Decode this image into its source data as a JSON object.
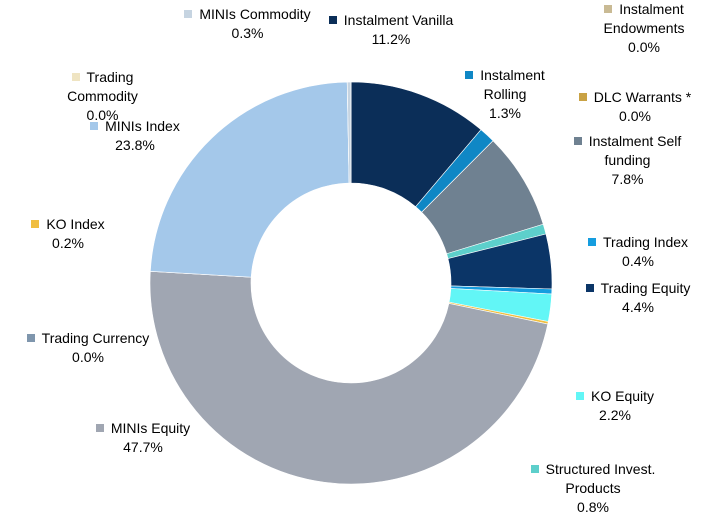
{
  "chart_data": {
    "type": "donut",
    "categories": [
      "Instalment Vanilla",
      "Instalment Rolling",
      "Instalment Self funding",
      "Structured Invest. Products",
      "Trading Equity",
      "Trading Index",
      "KO Equity",
      "KO Index",
      "MINIs Equity",
      "Trading Currency",
      "MINIs Index",
      "Trading Commodity",
      "MINIs Commodity",
      "Instalment Endowments",
      "DLC Warrants *"
    ],
    "values": [
      11.2,
      1.3,
      7.8,
      0.8,
      4.4,
      0.4,
      2.2,
      0.2,
      47.7,
      0.0,
      23.8,
      0.0,
      0.3,
      0.0,
      0.0
    ],
    "value_labels": [
      "11.2%",
      "1.3%",
      "7.8%",
      "0.8%",
      "4.4%",
      "0.4%",
      "2.2%",
      "0.2%",
      "47.7%",
      "0.0%",
      "23.8%",
      "0.0%",
      "0.3%",
      "0.0%",
      "0.0%"
    ],
    "colors": [
      "#0b2e58",
      "#0f87c5",
      "#6f8191",
      "#5dcfcb",
      "#0b3567",
      "#159ddf",
      "#62f6f6",
      "#f0be40",
      "#a0a6b2",
      "#7f96ad",
      "#a4c8ea",
      "#efe4c2",
      "#c6d4e1",
      "#c9ba94",
      "#c9a244"
    ]
  }
}
